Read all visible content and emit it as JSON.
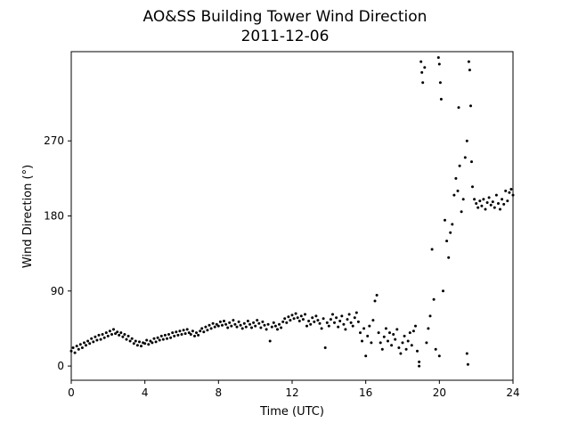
{
  "chart_data": {
    "type": "scatter",
    "title": "AO&SS Building Tower Wind Direction",
    "subtitle": "2011-12-06",
    "xlabel": "Time (UTC)",
    "ylabel": "Wind Direction (°)",
    "xlim": [
      0,
      24
    ],
    "ylim": [
      -17,
      377
    ],
    "xticks": [
      0,
      4,
      8,
      12,
      16,
      20,
      24
    ],
    "yticks": [
      0,
      90,
      180,
      270
    ],
    "grid": false,
    "legend": "none",
    "colors": {
      "marker": "#000000"
    },
    "series": [
      {
        "points": [
          [
            0.0,
            18
          ],
          [
            0.1,
            22
          ],
          [
            0.2,
            16
          ],
          [
            0.3,
            24
          ],
          [
            0.4,
            20
          ],
          [
            0.5,
            26
          ],
          [
            0.6,
            22
          ],
          [
            0.7,
            28
          ],
          [
            0.8,
            25
          ],
          [
            0.9,
            30
          ],
          [
            1.0,
            27
          ],
          [
            1.1,
            33
          ],
          [
            1.2,
            29
          ],
          [
            1.3,
            35
          ],
          [
            1.4,
            31
          ],
          [
            1.5,
            37
          ],
          [
            1.6,
            32
          ],
          [
            1.7,
            38
          ],
          [
            1.8,
            34
          ],
          [
            1.9,
            40
          ],
          [
            2.0,
            36
          ],
          [
            2.1,
            42
          ],
          [
            2.2,
            38
          ],
          [
            2.3,
            44
          ],
          [
            2.4,
            39
          ],
          [
            2.5,
            41
          ],
          [
            2.6,
            37
          ],
          [
            2.7,
            40
          ],
          [
            2.8,
            35
          ],
          [
            2.9,
            38
          ],
          [
            3.0,
            32
          ],
          [
            3.1,
            36
          ],
          [
            3.2,
            30
          ],
          [
            3.3,
            33
          ],
          [
            3.4,
            27
          ],
          [
            3.5,
            30
          ],
          [
            3.6,
            25
          ],
          [
            3.7,
            29
          ],
          [
            3.8,
            24
          ],
          [
            3.9,
            28
          ],
          [
            4.0,
            27
          ],
          [
            4.1,
            31
          ],
          [
            4.2,
            26
          ],
          [
            4.3,
            30
          ],
          [
            4.4,
            28
          ],
          [
            4.5,
            33
          ],
          [
            4.6,
            29
          ],
          [
            4.7,
            34
          ],
          [
            4.8,
            31
          ],
          [
            4.9,
            36
          ],
          [
            5.0,
            32
          ],
          [
            5.1,
            37
          ],
          [
            5.2,
            33
          ],
          [
            5.3,
            38
          ],
          [
            5.4,
            34
          ],
          [
            5.5,
            40
          ],
          [
            5.6,
            36
          ],
          [
            5.7,
            41
          ],
          [
            5.8,
            37
          ],
          [
            5.9,
            42
          ],
          [
            6.0,
            38
          ],
          [
            6.1,
            43
          ],
          [
            6.2,
            39
          ],
          [
            6.3,
            44
          ],
          [
            6.4,
            40
          ],
          [
            6.5,
            38
          ],
          [
            6.6,
            42
          ],
          [
            6.7,
            36
          ],
          [
            6.8,
            40
          ],
          [
            6.9,
            37
          ],
          [
            7.0,
            42
          ],
          [
            7.1,
            45
          ],
          [
            7.2,
            41
          ],
          [
            7.3,
            47
          ],
          [
            7.4,
            43
          ],
          [
            7.5,
            49
          ],
          [
            7.6,
            45
          ],
          [
            7.7,
            51
          ],
          [
            7.8,
            47
          ],
          [
            7.9,
            50
          ],
          [
            8.0,
            48
          ],
          [
            8.1,
            53
          ],
          [
            8.2,
            49
          ],
          [
            8.3,
            54
          ],
          [
            8.4,
            50
          ],
          [
            8.5,
            46
          ],
          [
            8.6,
            52
          ],
          [
            8.7,
            48
          ],
          [
            8.8,
            55
          ],
          [
            8.9,
            50
          ],
          [
            9.0,
            47
          ],
          [
            9.1,
            53
          ],
          [
            9.2,
            49
          ],
          [
            9.3,
            45
          ],
          [
            9.4,
            51
          ],
          [
            9.5,
            47
          ],
          [
            9.6,
            54
          ],
          [
            9.7,
            50
          ],
          [
            9.8,
            46
          ],
          [
            9.9,
            52
          ],
          [
            10.0,
            48
          ],
          [
            10.1,
            55
          ],
          [
            10.2,
            51
          ],
          [
            10.3,
            46
          ],
          [
            10.4,
            53
          ],
          [
            10.5,
            49
          ],
          [
            10.6,
            44
          ],
          [
            10.7,
            50
          ],
          [
            10.8,
            30
          ],
          [
            10.9,
            47
          ],
          [
            11.0,
            52
          ],
          [
            11.1,
            48
          ],
          [
            11.2,
            44
          ],
          [
            11.3,
            50
          ],
          [
            11.4,
            46
          ],
          [
            11.5,
            53
          ],
          [
            11.6,
            57
          ],
          [
            11.7,
            52
          ],
          [
            11.8,
            59
          ],
          [
            11.9,
            55
          ],
          [
            12.0,
            61
          ],
          [
            12.1,
            57
          ],
          [
            12.2,
            63
          ],
          [
            12.3,
            58
          ],
          [
            12.4,
            54
          ],
          [
            12.5,
            60
          ],
          [
            12.6,
            56
          ],
          [
            12.7,
            62
          ],
          [
            12.8,
            48
          ],
          [
            12.9,
            54
          ],
          [
            13.0,
            50
          ],
          [
            13.1,
            58
          ],
          [
            13.2,
            53
          ],
          [
            13.3,
            60
          ],
          [
            13.4,
            55
          ],
          [
            13.5,
            51
          ],
          [
            13.6,
            45
          ],
          [
            13.7,
            57
          ],
          [
            13.8,
            22
          ],
          [
            13.9,
            52
          ],
          [
            14.0,
            48
          ],
          [
            14.1,
            56
          ],
          [
            14.2,
            62
          ],
          [
            14.3,
            52
          ],
          [
            14.4,
            58
          ],
          [
            14.5,
            47
          ],
          [
            14.6,
            54
          ],
          [
            14.7,
            60
          ],
          [
            14.8,
            50
          ],
          [
            14.9,
            44
          ],
          [
            15.0,
            56
          ],
          [
            15.1,
            62
          ],
          [
            15.2,
            52
          ],
          [
            15.3,
            48
          ],
          [
            15.4,
            58
          ],
          [
            15.5,
            64
          ],
          [
            15.6,
            53
          ],
          [
            15.7,
            40
          ],
          [
            15.8,
            30
          ],
          [
            15.9,
            45
          ],
          [
            16.0,
            12
          ],
          [
            16.1,
            36
          ],
          [
            16.2,
            48
          ],
          [
            16.3,
            28
          ],
          [
            16.4,
            55
          ],
          [
            16.5,
            78
          ],
          [
            16.6,
            85
          ],
          [
            16.7,
            40
          ],
          [
            16.8,
            28
          ],
          [
            16.9,
            20
          ],
          [
            17.0,
            35
          ],
          [
            17.1,
            45
          ],
          [
            17.2,
            30
          ],
          [
            17.3,
            40
          ],
          [
            17.4,
            25
          ],
          [
            17.5,
            38
          ],
          [
            17.6,
            32
          ],
          [
            17.7,
            44
          ],
          [
            17.8,
            22
          ],
          [
            17.9,
            15
          ],
          [
            18.0,
            28
          ],
          [
            18.1,
            36
          ],
          [
            18.2,
            20
          ],
          [
            18.3,
            30
          ],
          [
            18.4,
            40
          ],
          [
            18.5,
            25
          ],
          [
            18.6,
            42
          ],
          [
            18.7,
            48
          ],
          [
            18.8,
            18
          ],
          [
            18.9,
            5
          ],
          [
            19.0,
            365
          ],
          [
            19.05,
            352
          ],
          [
            19.1,
            340
          ],
          [
            19.2,
            358
          ],
          [
            19.3,
            28
          ],
          [
            19.4,
            45
          ],
          [
            19.5,
            60
          ],
          [
            19.6,
            140
          ],
          [
            19.7,
            80
          ],
          [
            19.8,
            20
          ],
          [
            19.95,
            370
          ],
          [
            20.0,
            362
          ],
          [
            20.05,
            340
          ],
          [
            20.1,
            320
          ],
          [
            20.2,
            90
          ],
          [
            20.3,
            175
          ],
          [
            20.4,
            150
          ],
          [
            20.5,
            130
          ],
          [
            20.6,
            160
          ],
          [
            20.7,
            170
          ],
          [
            20.8,
            205
          ],
          [
            20.9,
            225
          ],
          [
            21.0,
            210
          ],
          [
            21.05,
            310
          ],
          [
            21.1,
            240
          ],
          [
            21.2,
            185
          ],
          [
            21.3,
            200
          ],
          [
            21.4,
            250
          ],
          [
            21.5,
            270
          ],
          [
            21.6,
            365
          ],
          [
            21.65,
            355
          ],
          [
            21.7,
            312
          ],
          [
            21.75,
            245
          ],
          [
            21.8,
            215
          ],
          [
            21.9,
            200
          ],
          [
            22.0,
            195
          ],
          [
            22.1,
            190
          ],
          [
            22.2,
            198
          ],
          [
            22.3,
            192
          ],
          [
            22.4,
            200
          ],
          [
            22.5,
            188
          ],
          [
            22.6,
            196
          ],
          [
            22.7,
            202
          ],
          [
            22.8,
            193
          ],
          [
            22.9,
            197
          ],
          [
            23.0,
            190
          ],
          [
            23.1,
            205
          ],
          [
            23.2,
            195
          ],
          [
            23.3,
            188
          ],
          [
            23.4,
            200
          ],
          [
            23.5,
            194
          ],
          [
            23.6,
            210
          ],
          [
            23.7,
            198
          ],
          [
            23.8,
            208
          ],
          [
            23.9,
            212
          ],
          [
            24.0,
            205
          ],
          [
            21.5,
            15
          ],
          [
            21.55,
            2
          ],
          [
            20.0,
            12
          ],
          [
            18.9,
            0
          ]
        ]
      }
    ]
  }
}
